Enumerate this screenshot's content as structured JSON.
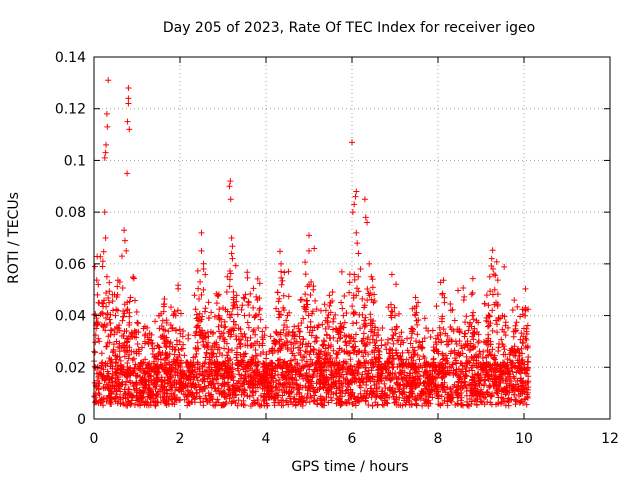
{
  "chart_data": {
    "type": "scatter",
    "title": "Day 205 of 2023, Rate Of TEC Index for receiver igeo",
    "xlabel": "GPS time / hours",
    "ylabel": "ROTI / TECUs",
    "xlim": [
      0,
      12
    ],
    "ylim": [
      0,
      0.14
    ],
    "x_ticks": [
      "0",
      "2",
      "4",
      "6",
      "8",
      "10",
      "12"
    ],
    "y_ticks": [
      "0",
      "0.02",
      "0.04",
      "0.06",
      "0.08",
      "0.1",
      "0.12",
      "0.14"
    ],
    "grid": true,
    "marker": "+",
    "color": "#ff0000",
    "data_extent_hours": [
      0,
      10.1
    ],
    "series": [
      {
        "name": "ROTI",
        "points": [
          [
            0.02,
            0.059
          ],
          [
            0.05,
            0.035
          ],
          [
            0.08,
            0.048
          ],
          [
            0.1,
            0.052
          ],
          [
            0.12,
            0.03
          ],
          [
            0.2,
            0.059
          ],
          [
            0.25,
            0.101
          ],
          [
            0.27,
            0.103
          ],
          [
            0.28,
            0.106
          ],
          [
            0.3,
            0.118
          ],
          [
            0.31,
            0.113
          ],
          [
            0.33,
            0.131
          ],
          [
            0.25,
            0.08
          ],
          [
            0.27,
            0.07
          ],
          [
            0.3,
            0.055
          ],
          [
            0.35,
            0.045
          ],
          [
            0.5,
            0.04
          ],
          [
            0.55,
            0.048
          ],
          [
            0.65,
            0.063
          ],
          [
            0.7,
            0.073
          ],
          [
            0.72,
            0.069
          ],
          [
            0.75,
            0.065
          ],
          [
            0.77,
            0.095
          ],
          [
            0.78,
            0.115
          ],
          [
            0.8,
            0.122
          ],
          [
            0.8,
            0.124
          ],
          [
            0.8,
            0.128
          ],
          [
            0.82,
            0.112
          ],
          [
            0.85,
            0.047
          ],
          [
            0.6,
            0.053
          ],
          [
            1.6,
            0.038
          ],
          [
            1.9,
            0.04
          ],
          [
            2.5,
            0.072
          ],
          [
            2.5,
            0.065
          ],
          [
            2.55,
            0.058
          ],
          [
            2.5,
            0.048
          ],
          [
            2.9,
            0.04
          ],
          [
            3.0,
            0.043
          ],
          [
            3.1,
            0.055
          ],
          [
            3.15,
            0.09
          ],
          [
            3.17,
            0.092
          ],
          [
            3.18,
            0.085
          ],
          [
            3.2,
            0.07
          ],
          [
            3.2,
            0.064
          ],
          [
            3.22,
            0.062
          ],
          [
            3.25,
            0.047
          ],
          [
            3.5,
            0.04
          ],
          [
            3.6,
            0.045
          ],
          [
            3.7,
            0.043
          ],
          [
            3.8,
            0.046
          ],
          [
            4.35,
            0.06
          ],
          [
            4.35,
            0.057
          ],
          [
            4.4,
            0.043
          ],
          [
            4.5,
            0.04
          ],
          [
            4.8,
            0.046
          ],
          [
            5.0,
            0.071
          ],
          [
            5.0,
            0.065
          ],
          [
            5.05,
            0.053
          ],
          [
            5.1,
            0.05
          ],
          [
            5.5,
            0.045
          ],
          [
            5.8,
            0.04
          ],
          [
            5.95,
            0.056
          ],
          [
            6.0,
            0.107
          ],
          [
            6.02,
            0.08
          ],
          [
            6.05,
            0.083
          ],
          [
            6.08,
            0.086
          ],
          [
            6.1,
            0.088
          ],
          [
            6.1,
            0.072
          ],
          [
            6.12,
            0.068
          ],
          [
            6.15,
            0.064
          ],
          [
            6.2,
            0.058
          ],
          [
            6.3,
            0.085
          ],
          [
            6.32,
            0.078
          ],
          [
            6.35,
            0.076
          ],
          [
            6.4,
            0.06
          ],
          [
            6.45,
            0.055
          ],
          [
            6.5,
            0.045
          ],
          [
            7.0,
            0.04
          ],
          [
            7.5,
            0.038
          ],
          [
            8.1,
            0.048
          ],
          [
            8.15,
            0.045
          ],
          [
            8.3,
            0.042
          ],
          [
            8.6,
            0.046
          ],
          [
            8.8,
            0.04
          ],
          [
            9.25,
            0.062
          ],
          [
            9.28,
            0.058
          ],
          [
            9.3,
            0.056
          ],
          [
            9.32,
            0.05
          ],
          [
            9.35,
            0.045
          ],
          [
            9.5,
            0.04
          ],
          [
            9.8,
            0.036
          ],
          [
            10.0,
            0.035
          ]
        ]
      }
    ]
  }
}
